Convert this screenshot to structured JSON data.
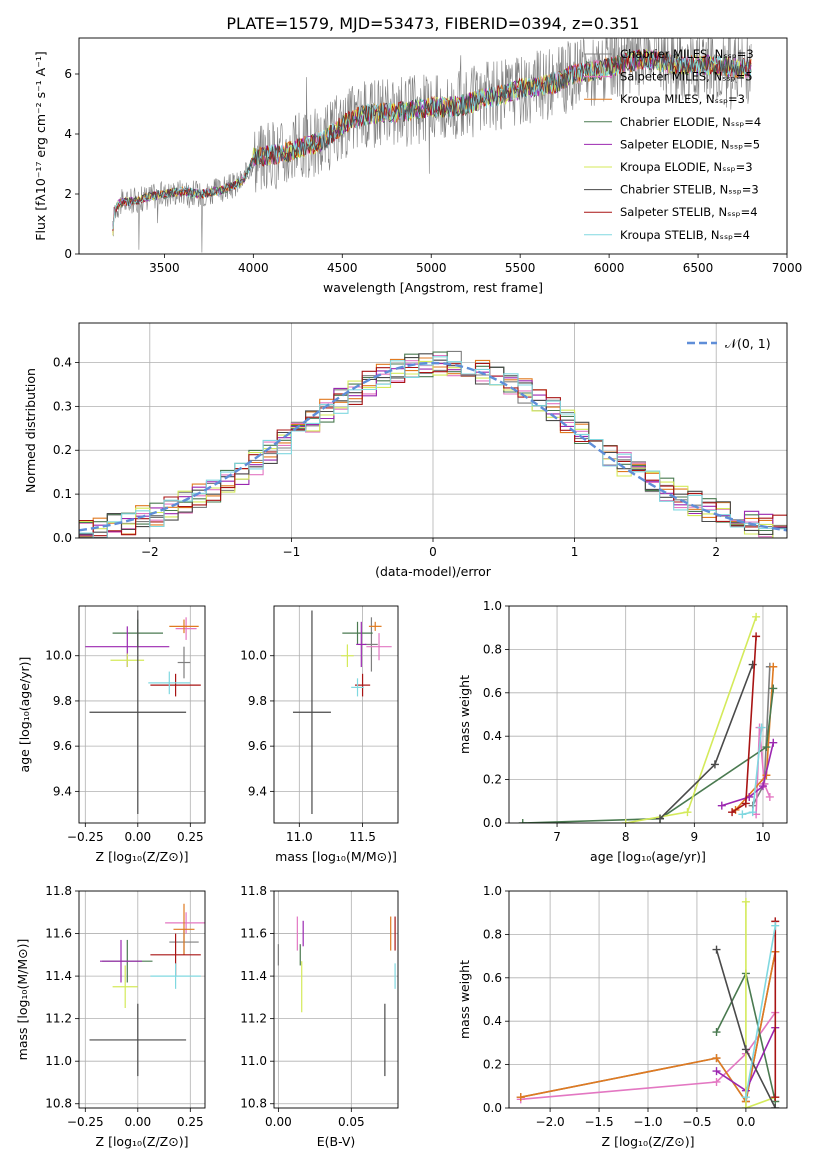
{
  "figure_title": "PLATE=1579, MJD=53473, FIBERID=0394, z=0.351",
  "model_colors": [
    "#7f7f7f",
    "#e377c2",
    "#e07a20",
    "#4a7a50",
    "#9b27b0",
    "#d4ea5a",
    "#4a4a4a",
    "#a81414",
    "#80d8e0"
  ],
  "chart_data": [
    {
      "id": "spectrum",
      "type": "line",
      "xlabel": "wavelength [Angstrom, rest frame]",
      "ylabel": "Flux [fλ10⁻¹⁷ erg cm⁻² s⁻¹ A⁻¹]",
      "xlim": [
        3020,
        7000
      ],
      "ylim": [
        0,
        7.2
      ],
      "xticks": [
        "3500",
        "4000",
        "4500",
        "5000",
        "5500",
        "6000",
        "6500",
        "7000"
      ],
      "yticks": [
        "0",
        "2",
        "4",
        "6"
      ],
      "legend_position": "upper right",
      "legend": [
        "Chabrier MILES, Nₛₛₚ=3",
        "Salpeter MILES, Nₛₛₚ=5",
        "Kroupa MILES, Nₛₛₚ=3",
        "Chabrier ELODIE, Nₛₛₚ=4",
        "Salpeter ELODIE, Nₛₛₚ=5",
        "Kroupa ELODIE, Nₛₛₚ=3",
        "Chabrier STELIB, Nₛₛₚ=3",
        "Salpeter STELIB, Nₛₛₚ=4",
        "Kroupa STELIB, Nₛₛₚ=4"
      ],
      "continuum": {
        "x": [
          3200,
          3220,
          3250,
          3300,
          3350,
          3400,
          3500,
          3600,
          3700,
          3800,
          3900,
          3950,
          4000,
          4100,
          4200,
          4300,
          4400,
          4500,
          4600,
          4700,
          4800,
          4900,
          5000,
          5100,
          5200,
          5300,
          5400,
          5500,
          5600,
          5700,
          5800,
          5900,
          6000,
          6100,
          6200,
          6300,
          6400,
          6500,
          6600,
          6700,
          6800
        ],
        "y": [
          0,
          1.5,
          1.7,
          1.75,
          1.8,
          1.9,
          2.0,
          2.1,
          2.0,
          2.1,
          2.3,
          2.5,
          3.2,
          3.3,
          3.4,
          3.6,
          3.8,
          4.3,
          4.6,
          4.7,
          4.7,
          4.8,
          4.9,
          4.9,
          5.0,
          5.2,
          5.3,
          5.5,
          5.6,
          5.7,
          6.0,
          6.1,
          6.2,
          6.4,
          6.5,
          6.4,
          6.3,
          6.3,
          6.3,
          6.2,
          6.2
        ]
      }
    },
    {
      "id": "residuals",
      "type": "histogram",
      "xlabel": "(data-model)/error",
      "ylabel": "Normed distribution",
      "xlim": [
        -2.5,
        2.5
      ],
      "ylim": [
        0,
        0.49
      ],
      "xticks": [
        "−2",
        "−1",
        "0",
        "1",
        "2"
      ],
      "yticks": [
        "0.0",
        "0.1",
        "0.2",
        "0.3",
        "0.4"
      ],
      "grid": true,
      "legend_position": "upper right",
      "reference_curve": "𝒩(0, 1)",
      "bins": [
        -2.5,
        -2.4,
        -2.3,
        -2.2,
        -2.1,
        -2.0,
        -1.9,
        -1.8,
        -1.7,
        -1.6,
        -1.5,
        -1.4,
        -1.3,
        -1.2,
        -1.1,
        -1.0,
        -0.9,
        -0.8,
        -0.7,
        -0.6,
        -0.5,
        -0.4,
        -0.3,
        -0.2,
        -0.1,
        0.0,
        0.1,
        0.2,
        0.3,
        0.4,
        0.5,
        0.6,
        0.7,
        0.8,
        0.9,
        1.0,
        1.1,
        1.2,
        1.3,
        1.4,
        1.5,
        1.6,
        1.7,
        1.8,
        1.9,
        2.0,
        2.1,
        2.2,
        2.3,
        2.4,
        2.5
      ],
      "base_density": [
        0.018,
        0.023,
        0.029,
        0.036,
        0.044,
        0.054,
        0.066,
        0.079,
        0.094,
        0.111,
        0.13,
        0.15,
        0.171,
        0.194,
        0.218,
        0.242,
        0.266,
        0.29,
        0.312,
        0.333,
        0.352,
        0.368,
        0.381,
        0.391,
        0.397,
        0.399,
        0.397,
        0.391,
        0.381,
        0.368,
        0.352,
        0.333,
        0.312,
        0.29,
        0.266,
        0.242,
        0.218,
        0.194,
        0.171,
        0.15,
        0.13,
        0.111,
        0.094,
        0.079,
        0.066,
        0.054,
        0.044,
        0.036,
        0.029,
        0.023
      ]
    },
    {
      "id": "age_vs_Z",
      "type": "errorbar",
      "xlabel": "Z [log₁₀(Z/Z⊙)]",
      "ylabel": "age  [log₁₀(age/yr)]",
      "xlim": [
        -0.28,
        0.32
      ],
      "ylim": [
        9.26,
        10.22
      ],
      "xticks": [
        "−0.25",
        "0.00",
        "0.25"
      ],
      "yticks": [
        "9.4",
        "9.6",
        "9.8",
        "10.0"
      ],
      "grid": true,
      "points": [
        {
          "x": 0.22,
          "xerr": 0.03,
          "y": 9.97,
          "yerr": 0.07
        },
        {
          "x": 0.23,
          "xerr": 0.05,
          "y": 10.12,
          "yerr": 0.05
        },
        {
          "x": 0.22,
          "xerr": 0.07,
          "y": 10.13,
          "yerr": 0.03
        },
        {
          "x": 0.0,
          "xerr": 0.12,
          "y": 10.1,
          "yerr": 0.06
        },
        {
          "x": -0.05,
          "xerr": 0.2,
          "y": 10.04,
          "yerr": 0.09
        },
        {
          "x": -0.05,
          "xerr": 0.08,
          "y": 9.98,
          "yerr": 0.03
        },
        {
          "x": 0.0,
          "xerr": 0.23,
          "y": 9.75,
          "yerr": 0.45
        },
        {
          "x": 0.18,
          "xerr": 0.12,
          "y": 9.87,
          "yerr": 0.05
        },
        {
          "x": 0.15,
          "xerr": 0.1,
          "y": 9.88,
          "yerr": 0.05
        }
      ]
    },
    {
      "id": "age_vs_mass",
      "type": "errorbar",
      "xlabel": "mass [log₁₀(M/M⊙)]",
      "ylabel": "",
      "xlim": [
        10.8,
        11.78
      ],
      "ylim": [
        9.26,
        10.22
      ],
      "xticks": [
        "11.0",
        "11.5"
      ],
      "yticks": [
        "9.4",
        "9.6",
        "9.8",
        "10.0"
      ],
      "grid": true,
      "points": [
        {
          "x": 11.57,
          "xerr": 0.05,
          "y": 10.05,
          "yerr": 0.12
        },
        {
          "x": 11.63,
          "xerr": 0.1,
          "y": 10.04,
          "yerr": 0.06
        },
        {
          "x": 11.6,
          "xerr": 0.05,
          "y": 10.13,
          "yerr": 0.02
        },
        {
          "x": 11.46,
          "xerr": 0.12,
          "y": 10.1,
          "yerr": 0.05
        },
        {
          "x": 11.49,
          "xerr": 0.04,
          "y": 10.05,
          "yerr": 0.1
        },
        {
          "x": 11.38,
          "xerr": 0.05,
          "y": 10.0,
          "yerr": 0.05
        },
        {
          "x": 11.1,
          "xerr": 0.15,
          "y": 9.75,
          "yerr": 0.45
        },
        {
          "x": 11.5,
          "xerr": 0.06,
          "y": 9.87,
          "yerr": 0.05
        },
        {
          "x": 11.46,
          "xerr": 0.05,
          "y": 9.86,
          "yerr": 0.04
        }
      ]
    },
    {
      "id": "weight_vs_age",
      "type": "line",
      "xlabel": "age  [log₁₀(age/yr)]",
      "ylabel": "mass weight",
      "xlim": [
        6.3,
        10.35
      ],
      "ylim": [
        0,
        1.0
      ],
      "xticks": [
        "7",
        "8",
        "9",
        "10"
      ],
      "yticks": [
        "0.0",
        "0.2",
        "0.4",
        "0.6",
        "0.8",
        "1.0"
      ],
      "grid": true,
      "series": [
        {
          "x": [
            9.85,
            10.02,
            10.1
          ],
          "y": [
            0.08,
            0.18,
            0.72
          ]
        },
        {
          "x": [
            9.9,
            9.95,
            10.02,
            10.1
          ],
          "y": [
            0.04,
            0.44,
            0.18,
            0.12
          ]
        },
        {
          "x": [
            9.6,
            10.05,
            10.15
          ],
          "y": [
            0.06,
            0.22,
            0.72
          ]
        },
        {
          "x": [
            6.5,
            8.5,
            10.05,
            10.15
          ],
          "y": [
            0.0,
            0.02,
            0.35,
            0.62
          ]
        },
        {
          "x": [
            9.4,
            9.8,
            10.0,
            10.15
          ],
          "y": [
            0.08,
            0.12,
            0.17,
            0.37
          ]
        },
        {
          "x": [
            8.0,
            8.9,
            9.9
          ],
          "y": [
            0.0,
            0.05,
            0.95
          ]
        },
        {
          "x": [
            8.5,
            9.3,
            9.85
          ],
          "y": [
            0.02,
            0.27,
            0.73
          ]
        },
        {
          "x": [
            9.55,
            9.75,
            9.9
          ],
          "y": [
            0.05,
            0.09,
            0.86
          ]
        },
        {
          "x": [
            9.7,
            9.85,
            9.98
          ],
          "y": [
            0.04,
            0.05,
            0.44
          ]
        }
      ]
    },
    {
      "id": "mass_vs_Z",
      "type": "errorbar",
      "xlabel": "Z [log₁₀(Z/Z⊙)]",
      "ylabel": "mass [log₁₀(M/M⊙)]",
      "xlim": [
        -0.28,
        0.32
      ],
      "ylim": [
        10.78,
        11.8
      ],
      "xticks": [
        "−0.25",
        "0.00",
        "0.25"
      ],
      "yticks": [
        "10.8",
        "11.0",
        "11.2",
        "11.4",
        "11.6",
        "11.8"
      ],
      "grid": true,
      "points": [
        {
          "x": 0.22,
          "xerr": 0.07,
          "y": 11.56,
          "yerr": 0.06
        },
        {
          "x": 0.23,
          "xerr": 0.1,
          "y": 11.65,
          "yerr": 0.05
        },
        {
          "x": 0.22,
          "xerr": 0.05,
          "y": 11.62,
          "yerr": 0.12
        },
        {
          "x": -0.05,
          "xerr": 0.12,
          "y": 11.47,
          "yerr": 0.1
        },
        {
          "x": -0.08,
          "xerr": 0.1,
          "y": 11.47,
          "yerr": 0.1
        },
        {
          "x": -0.06,
          "xerr": 0.06,
          "y": 11.35,
          "yerr": 0.1
        },
        {
          "x": 0.0,
          "xerr": 0.23,
          "y": 11.1,
          "yerr": 0.17
        },
        {
          "x": 0.18,
          "xerr": 0.12,
          "y": 11.5,
          "yerr": 0.1
        },
        {
          "x": 0.18,
          "xerr": 0.12,
          "y": 11.4,
          "yerr": 0.06
        }
      ]
    },
    {
      "id": "mass_vs_ebv",
      "type": "errorbar",
      "xlabel": "E(B-V)",
      "ylabel": "",
      "xlim": [
        -0.003,
        0.082
      ],
      "ylim": [
        10.78,
        11.8
      ],
      "xticks": [
        "0.00",
        "0.05"
      ],
      "yticks": [
        "10.8",
        "11.0",
        "11.2",
        "11.4",
        "11.6",
        "11.8"
      ],
      "grid": true,
      "points": [
        {
          "x": 0.0,
          "xerr": 0.0,
          "y": 11.5,
          "yerr": 0.05
        },
        {
          "x": 0.013,
          "xerr": 0.0,
          "y": 11.6,
          "yerr": 0.08
        },
        {
          "x": 0.077,
          "xerr": 0.0,
          "y": 11.6,
          "yerr": 0.08
        },
        {
          "x": 0.015,
          "xerr": 0.0,
          "y": 11.5,
          "yerr": 0.05
        },
        {
          "x": 0.017,
          "xerr": 0.0,
          "y": 11.6,
          "yerr": 0.06
        },
        {
          "x": 0.016,
          "xerr": 0.0,
          "y": 11.35,
          "yerr": 0.12
        },
        {
          "x": 0.073,
          "xerr": 0.0,
          "y": 11.1,
          "yerr": 0.17
        },
        {
          "x": 0.08,
          "xerr": 0.0,
          "y": 11.6,
          "yerr": 0.08
        },
        {
          "x": 0.08,
          "xerr": 0.0,
          "y": 11.4,
          "yerr": 0.06
        }
      ]
    },
    {
      "id": "weight_vs_Z",
      "type": "line",
      "xlabel": "Z [log₁₀(Z/Z⊙)]",
      "ylabel": "mass weight",
      "xlim": [
        -2.42,
        0.42
      ],
      "ylim": [
        0,
        1.0
      ],
      "xticks": [
        "−2.0",
        "−1.5",
        "−1.0",
        "−0.5",
        "0.0"
      ],
      "yticks": [
        "0.0",
        "0.2",
        "0.4",
        "0.6",
        "0.8",
        "1.0"
      ],
      "grid": true,
      "series": [
        {
          "x": [
            -2.3,
            -0.3,
            0.0,
            0.3
          ],
          "y": [
            0.05,
            0.23,
            0.03,
            0.72
          ]
        },
        {
          "x": [
            -2.3,
            -0.3,
            0.0,
            0.3
          ],
          "y": [
            0.04,
            0.12,
            0.25,
            0.44
          ]
        },
        {
          "x": [
            -2.3,
            -0.3,
            0.0,
            0.3
          ],
          "y": [
            0.05,
            0.23,
            0.03,
            0.72
          ]
        },
        {
          "x": [
            -0.3,
            0.0,
            0.3
          ],
          "y": [
            0.35,
            0.62,
            0.03
          ]
        },
        {
          "x": [
            -0.3,
            0.0,
            0.3
          ],
          "y": [
            0.17,
            0.08,
            0.37
          ]
        },
        {
          "x": [
            0.0,
            0.0,
            0.3
          ],
          "y": [
            0.95,
            0.0,
            0.05
          ]
        },
        {
          "x": [
            -0.3,
            0.0,
            0.3
          ],
          "y": [
            0.73,
            0.27,
            0.0
          ]
        },
        {
          "x": [
            0.3,
            0.3
          ],
          "y": [
            0.86,
            0.05
          ]
        },
        {
          "x": [
            0.0,
            0.3
          ],
          "y": [
            0.05,
            0.84
          ]
        }
      ]
    }
  ]
}
